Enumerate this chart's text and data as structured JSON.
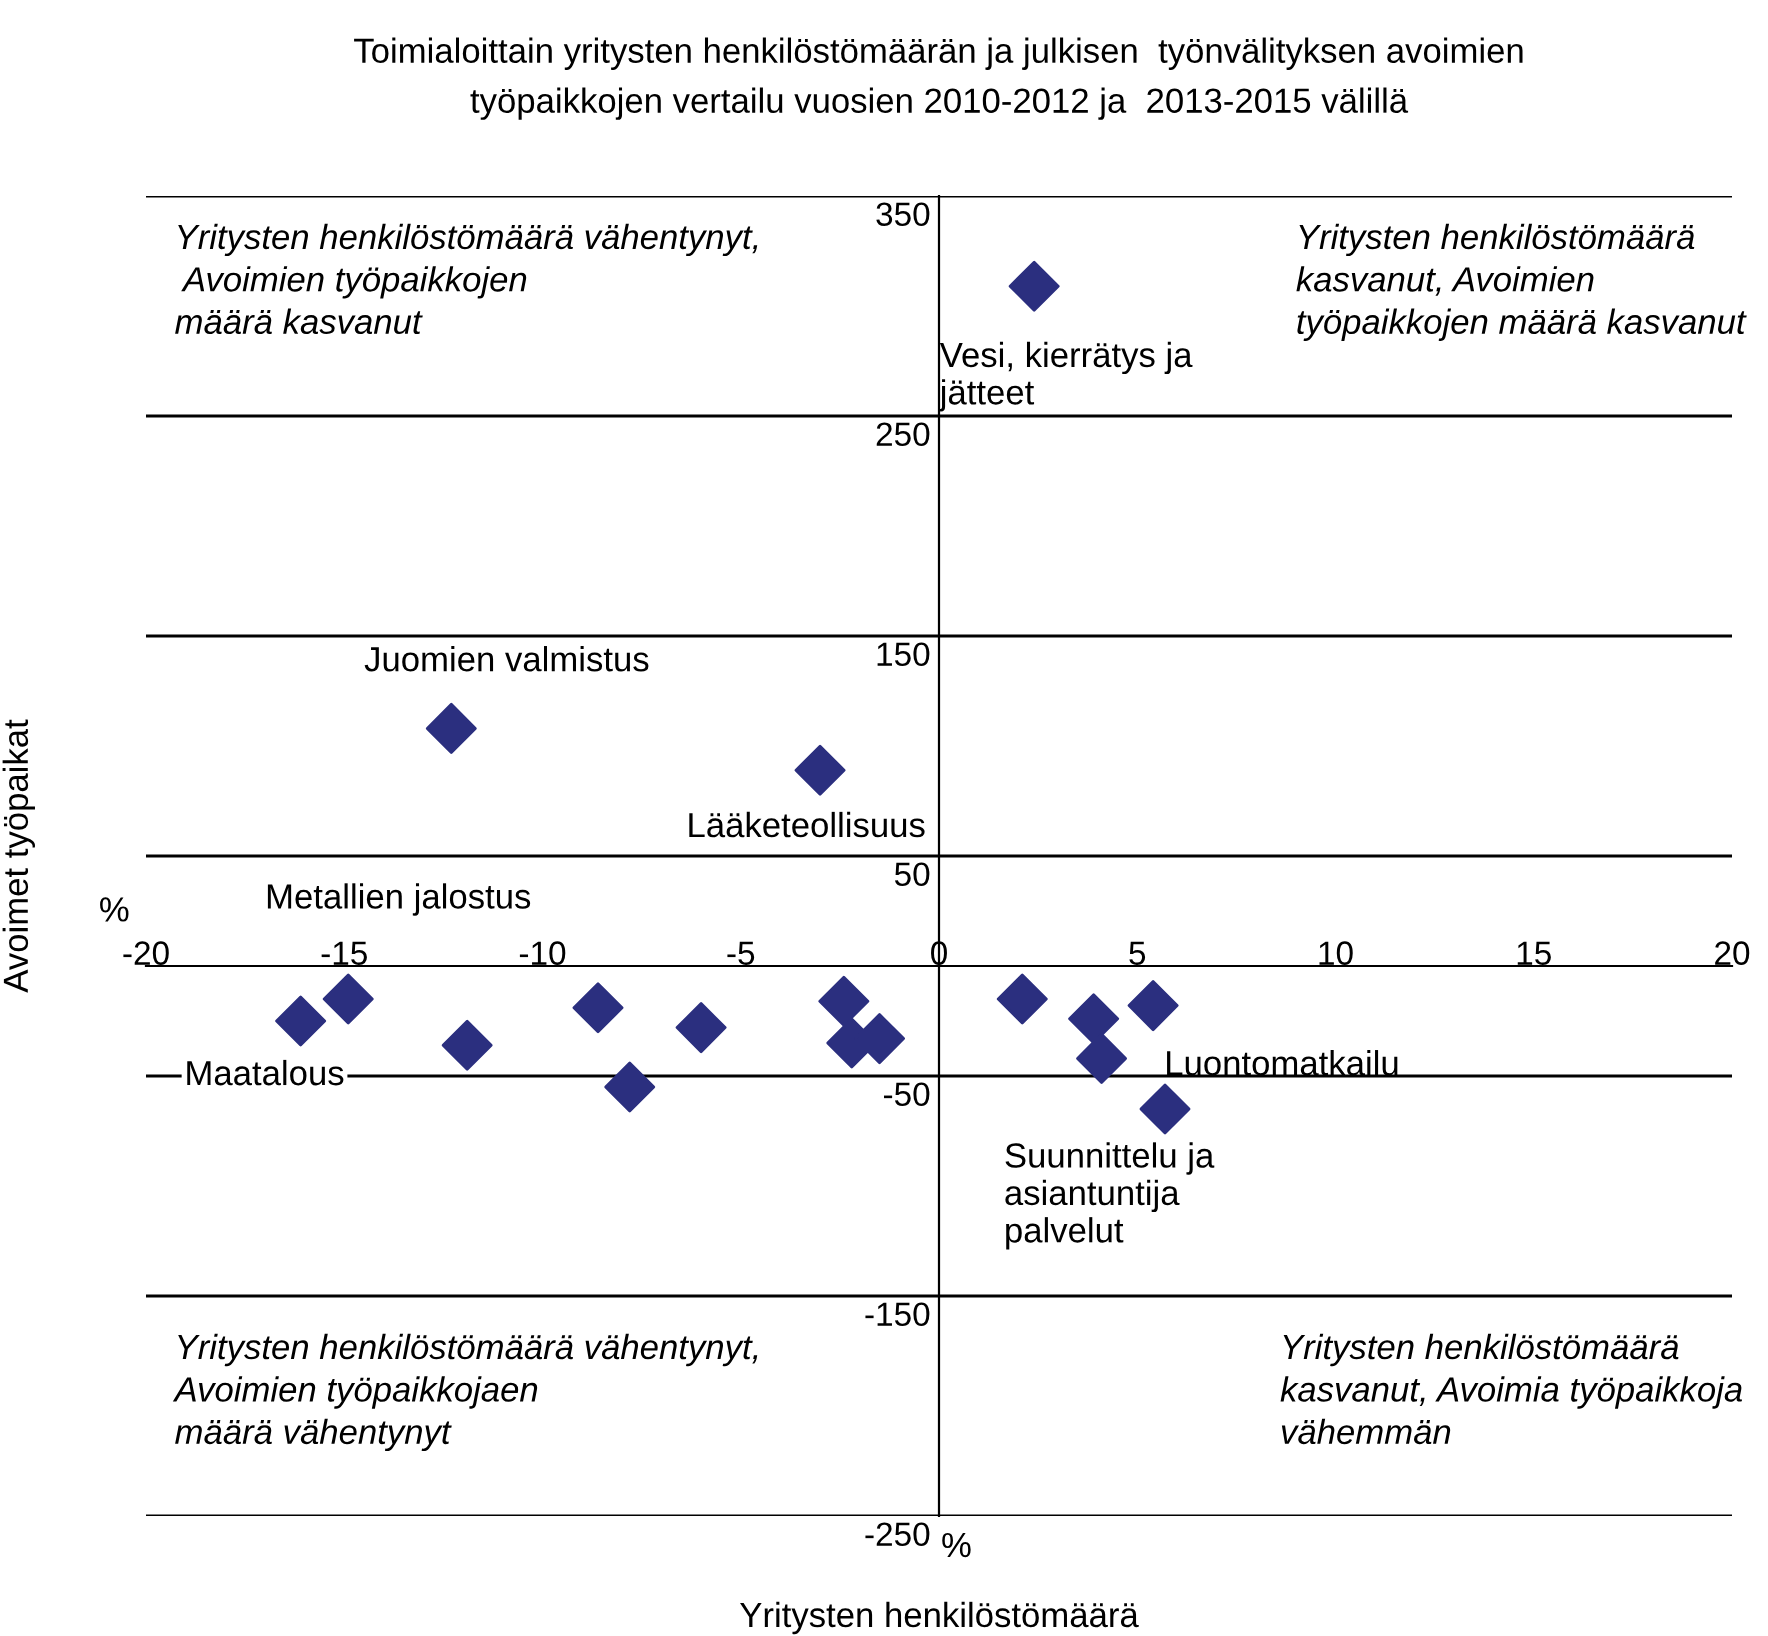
{
  "chart_data": {
    "type": "scatter",
    "title": "Toimialoittain yritysten henkilöstömäärän ja julkisen  työnvälityksen avoimien\ntyöpaikkojen vertailu vuosien 2010-2012 ja  2013-2015 välillä",
    "xlabel": "Yritysten henkilöstömäärä",
    "ylabel": "Avoimet työpaikat",
    "x": [
      2.4,
      -12.3,
      -3.0,
      -14.9,
      -16.1,
      -11.9,
      -8.6,
      -7.8,
      -6.0,
      -2.4,
      -2.2,
      -1.5,
      2.1,
      3.9,
      4.1,
      5.4,
      5.7
    ],
    "values": [
      309,
      108,
      89,
      -15,
      -25,
      -36,
      -19,
      -55,
      -28,
      -16,
      -35,
      -33,
      -15,
      -24,
      -42,
      -18,
      -65
    ],
    "color": "#2b2f7f",
    "marker": "diamond",
    "xlim": [
      -20,
      20
    ],
    "ylim": [
      -250,
      350
    ],
    "xticks": [
      -20,
      -15,
      -10,
      -5,
      0,
      5,
      10,
      15,
      20
    ],
    "yticks": [
      -250,
      -150,
      -50,
      50,
      150,
      250,
      350
    ],
    "grid": "y",
    "annotations": [
      {
        "text": "Vesi, kierrätys ja\njätteet",
        "x": 2.4,
        "y": 309
      },
      {
        "text": "Juomien valmistus",
        "x": -12.3,
        "y": 108
      },
      {
        "text": "Lääketeollisuus",
        "x": -3.0,
        "y": 89
      },
      {
        "text": "Metallien jalostus",
        "x": -14.9,
        "y": -15
      },
      {
        "text": "Maatalous",
        "x": -16.1,
        "y": -25
      },
      {
        "text": "Luontomatkailu",
        "x": 5.4,
        "y": -18
      },
      {
        "text": "Suunnittelu ja\nasiantuntija\npalvelut",
        "x": 5.7,
        "y": -65
      },
      "Yritysten henkilöstömäärä vähentynyt,\n Avoimien työpaikkojen\nmäärä kasvanut",
      "Yritysten henkilöstömäärä\nkasvanut, Avoimien\ntyöpaikkojen määrä kasvanut",
      "Yritysten henkilöstömäärä vähentynyt,\nAvoimien työpaikkojaen\nmäärä vähentynyt",
      "Yritysten henkilöstömäärä\nkasvanut, Avoimia työpaikkoja\nvähemmän",
      "%",
      "%"
    ]
  }
}
